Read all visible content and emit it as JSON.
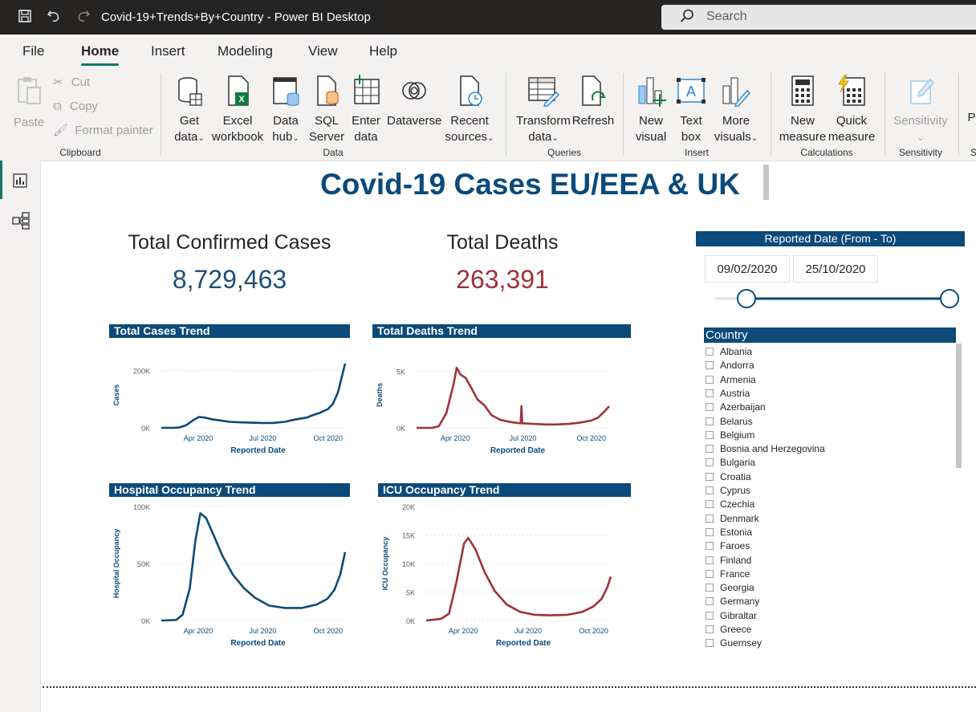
{
  "titlebar": {
    "title": "Covid-19+Trends+By+Country - Power BI Desktop",
    "search_placeholder": "Search",
    "icons": [
      "save-icon",
      "undo-icon",
      "redo-icon",
      "search-icon"
    ]
  },
  "menu": {
    "tabs": [
      {
        "label": "File",
        "active": false
      },
      {
        "label": "Home",
        "active": true
      },
      {
        "label": "Insert",
        "active": false
      },
      {
        "label": "Modeling",
        "active": false
      },
      {
        "label": "View",
        "active": false
      },
      {
        "label": "Help",
        "active": false
      }
    ]
  },
  "ribbon": {
    "clipboard": {
      "label": "Clipboard",
      "paste": "Paste",
      "cut": "Cut",
      "copy": "Copy",
      "format_painter": "Format painter"
    },
    "data": {
      "label": "Data",
      "get_data": [
        "Get",
        "data"
      ],
      "excel": [
        "Excel",
        "workbook"
      ],
      "data_hub": [
        "Data",
        "hub"
      ],
      "sql": [
        "SQL",
        "Server"
      ],
      "enter_data": [
        "Enter",
        "data"
      ],
      "dataverse": "Dataverse",
      "recent": [
        "Recent",
        "sources"
      ]
    },
    "queries": {
      "label": "Queries",
      "transform": [
        "Transform",
        "data"
      ],
      "refresh": "Refresh"
    },
    "insert": {
      "label": "Insert",
      "new_visual": [
        "New",
        "visual"
      ],
      "text_box": [
        "Text",
        "box"
      ],
      "more_visuals": [
        "More",
        "visuals"
      ]
    },
    "calculations": {
      "label": "Calculations",
      "new_measure": [
        "New",
        "measure"
      ],
      "quick_measure": [
        "Quick",
        "measure"
      ]
    },
    "sensitivity": {
      "label": "Sensitivity",
      "button": "Sensitivity"
    },
    "overflow": {
      "label_fragment": "P",
      "group_fragment": "S"
    }
  },
  "report": {
    "title": "Covid-19 Cases EU/EEA & UK",
    "kpis": [
      {
        "label": "Total Confirmed Cases",
        "value": "8,729,463",
        "color": "#1f4e79"
      },
      {
        "label": "Total Deaths",
        "value": "263,391",
        "color": "#a0323a"
      }
    ],
    "slicer_date": {
      "header": "Reported Date (From - To)",
      "from": "09/02/2020",
      "to": "25/10/2020",
      "range_fraction": [
        0.0,
        1.0
      ]
    },
    "slicer_country": {
      "header": "Country",
      "items": [
        "Albania",
        "Andorra",
        "Armenia",
        "Austria",
        "Azerbaijan",
        "Belarus",
        "Belgium",
        "Bosnia and Herzegovina",
        "Bulgaria",
        "Croatia",
        "Cyprus",
        "Czechia",
        "Denmark",
        "Estonia",
        "Faroes",
        "Finland",
        "France",
        "Georgia",
        "Germany",
        "Gibraltar",
        "Greece",
        "Guernsey"
      ]
    }
  },
  "chart_data": [
    {
      "type": "line",
      "title": "Total Cases Trend",
      "xlabel": "Reported Date",
      "ylabel": "Cases",
      "x_ticks": [
        "Apr 2020",
        "Jul 2020",
        "Oct 2020"
      ],
      "y_ticks": [
        "0K",
        "200K"
      ],
      "ylim": [
        0,
        230000
      ],
      "color": "#0b4a7a",
      "x": [
        "2020-02-09",
        "2020-02-25",
        "2020-03-05",
        "2020-03-15",
        "2020-03-25",
        "2020-04-02",
        "2020-04-10",
        "2020-04-20",
        "2020-05-01",
        "2020-05-15",
        "2020-06-01",
        "2020-06-15",
        "2020-07-01",
        "2020-07-15",
        "2020-08-01",
        "2020-08-15",
        "2020-09-01",
        "2020-09-10",
        "2020-09-20",
        "2020-10-01",
        "2020-10-08",
        "2020-10-15",
        "2020-10-20",
        "2020-10-25"
      ],
      "values": [
        0,
        0,
        1000,
        9000,
        27000,
        38000,
        36000,
        30000,
        26000,
        21000,
        19000,
        18000,
        17000,
        17000,
        21000,
        29000,
        36000,
        45000,
        53000,
        66000,
        85000,
        125000,
        175000,
        225000
      ]
    },
    {
      "type": "line",
      "title": "Total Deaths Trend",
      "xlabel": "Reported Date",
      "ylabel": "Deaths",
      "x_ticks": [
        "Apr 2020",
        "Jul 2020",
        "Oct 2020"
      ],
      "y_ticks": [
        "0K",
        "5K"
      ],
      "ylim": [
        0,
        5800
      ],
      "color": "#a0323a",
      "x": [
        "2020-02-09",
        "2020-03-01",
        "2020-03-10",
        "2020-03-20",
        "2020-03-30",
        "2020-04-03",
        "2020-04-08",
        "2020-04-15",
        "2020-04-22",
        "2020-05-01",
        "2020-05-10",
        "2020-05-20",
        "2020-06-01",
        "2020-06-15",
        "2020-06-28",
        "2020-06-29",
        "2020-06-30",
        "2020-07-15",
        "2020-08-01",
        "2020-08-15",
        "2020-09-01",
        "2020-09-15",
        "2020-10-01",
        "2020-10-10",
        "2020-10-18",
        "2020-10-25"
      ],
      "values": [
        0,
        0,
        150,
        1300,
        3900,
        5300,
        4700,
        4400,
        3600,
        2500,
        2000,
        1100,
        700,
        500,
        400,
        1900,
        400,
        350,
        300,
        300,
        350,
        450,
        650,
        900,
        1400,
        1900
      ]
    },
    {
      "type": "line",
      "title": "Hospital Occupancy Trend",
      "xlabel": "Reported Date",
      "ylabel": "Hospital Occupancy",
      "x_ticks": [
        "Apr 2020",
        "Jul 2020",
        "Oct 2020"
      ],
      "y_ticks": [
        "0K",
        "50K",
        "100K"
      ],
      "ylim": [
        0,
        100000
      ],
      "color": "#0b4a7a",
      "x": [
        "2020-02-09",
        "2020-03-01",
        "2020-03-10",
        "2020-03-20",
        "2020-03-28",
        "2020-04-04",
        "2020-04-12",
        "2020-04-22",
        "2020-05-05",
        "2020-05-20",
        "2020-06-05",
        "2020-06-20",
        "2020-07-10",
        "2020-08-01",
        "2020-08-25",
        "2020-09-15",
        "2020-09-30",
        "2020-10-10",
        "2020-10-18",
        "2020-10-25"
      ],
      "values": [
        0,
        500,
        5000,
        28000,
        70000,
        94000,
        90000,
        76000,
        57000,
        40000,
        28000,
        20000,
        13000,
        11000,
        11000,
        14000,
        19000,
        27000,
        40000,
        60000
      ]
    },
    {
      "type": "line",
      "title": "ICU Occupancy Trend",
      "xlabel": "Reported Date",
      "ylabel": "ICU Occupancy",
      "x_ticks": [
        "Apr 2020",
        "Jul 2020",
        "Oct 2020"
      ],
      "y_ticks": [
        "0K",
        "5K",
        "10K",
        "15K",
        "20K"
      ],
      "ylim": [
        0,
        20000
      ],
      "color": "#a0323a",
      "x": [
        "2020-02-09",
        "2020-03-01",
        "2020-03-12",
        "2020-03-22",
        "2020-04-02",
        "2020-04-08",
        "2020-04-18",
        "2020-05-01",
        "2020-05-15",
        "2020-06-01",
        "2020-06-20",
        "2020-07-10",
        "2020-08-01",
        "2020-08-25",
        "2020-09-15",
        "2020-10-01",
        "2020-10-12",
        "2020-10-20",
        "2020-10-25"
      ],
      "values": [
        0,
        300,
        1200,
        6500,
        13500,
        14500,
        12500,
        8500,
        5200,
        2800,
        1500,
        1000,
        900,
        1000,
        1500,
        2500,
        3800,
        5800,
        7700
      ]
    }
  ]
}
